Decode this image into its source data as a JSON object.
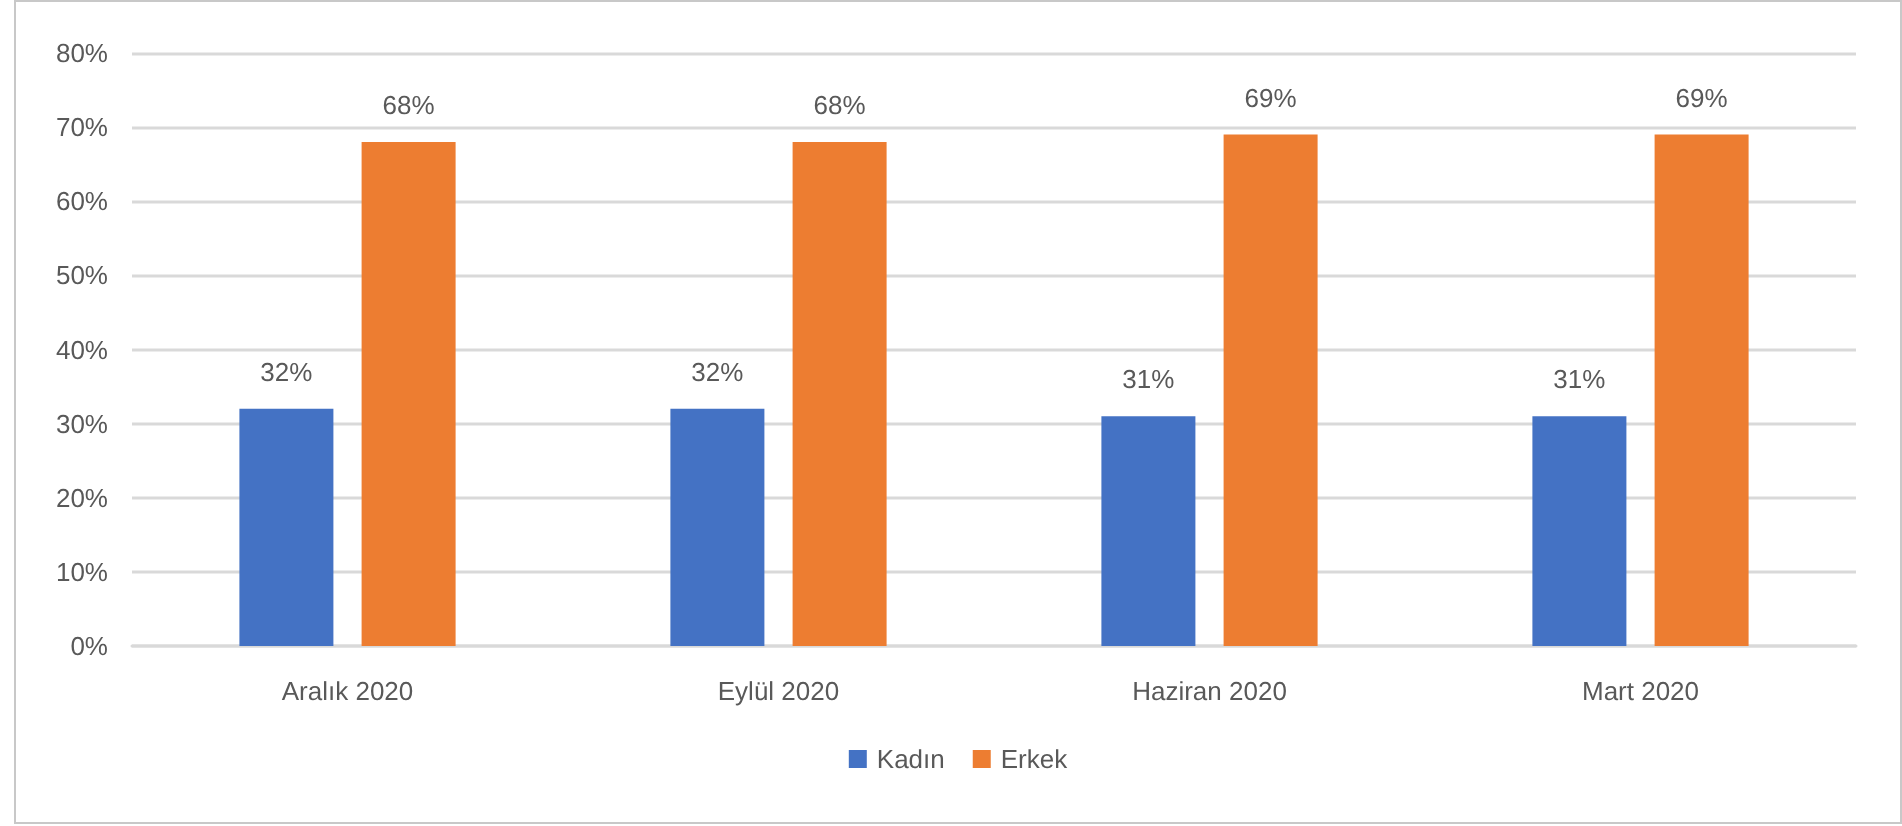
{
  "chart_data": {
    "type": "bar",
    "categories": [
      "Aralık 2020",
      "Eylül 2020",
      "Haziran 2020",
      "Mart 2020"
    ],
    "series": [
      {
        "name": "Kadın",
        "color": "#4472c4",
        "values": [
          32,
          32,
          31,
          31
        ],
        "value_labels": [
          "32%",
          "32%",
          "31%",
          "31%"
        ]
      },
      {
        "name": "Erkek",
        "color": "#ed7d31",
        "values": [
          68,
          68,
          69,
          69
        ],
        "value_labels": [
          "68%",
          "68%",
          "69%",
          "69%"
        ]
      }
    ],
    "ylim": [
      0,
      80
    ],
    "yticks": [
      {
        "value": 0,
        "label": "0%"
      },
      {
        "value": 10,
        "label": "10%"
      },
      {
        "value": 20,
        "label": "20%"
      },
      {
        "value": 30,
        "label": "30%"
      },
      {
        "value": 40,
        "label": "40%"
      },
      {
        "value": 50,
        "label": "50%"
      },
      {
        "value": 60,
        "label": "60%"
      },
      {
        "value": 70,
        "label": "70%"
      },
      {
        "value": 80,
        "label": "80%"
      }
    ],
    "grid": "y",
    "legend": "bottom"
  }
}
